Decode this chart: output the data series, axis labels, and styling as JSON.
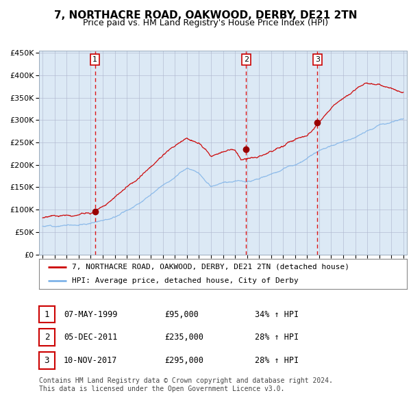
{
  "title": "7, NORTHACRE ROAD, OAKWOOD, DERBY, DE21 2TN",
  "subtitle": "Price paid vs. HM Land Registry's House Price Index (HPI)",
  "background_color": "#ffffff",
  "plot_bg_color": "#dce9f5",
  "hpi_line_color": "#7fb3e8",
  "price_line_color": "#cc0000",
  "marker_color": "#990000",
  "vline_color": "#dd0000",
  "ytick_values": [
    0,
    50000,
    100000,
    150000,
    200000,
    250000,
    300000,
    350000,
    400000,
    450000
  ],
  "ylim": [
    0,
    455000
  ],
  "xlim": [
    1994.7,
    2025.3
  ],
  "sale_dates": [
    1999.35,
    2011.92,
    2017.86
  ],
  "sale_prices": [
    95000,
    235000,
    295000
  ],
  "sale_labels": [
    "1",
    "2",
    "3"
  ],
  "sale_info": [
    {
      "num": "1",
      "date": "07-MAY-1999",
      "price": "£95,000",
      "change": "34% ↑ HPI"
    },
    {
      "num": "2",
      "date": "05-DEC-2011",
      "price": "£235,000",
      "change": "28% ↑ HPI"
    },
    {
      "num": "3",
      "date": "10-NOV-2017",
      "price": "£295,000",
      "change": "28% ↑ HPI"
    }
  ],
  "legend_property": "7, NORTHACRE ROAD, OAKWOOD, DERBY, DE21 2TN (detached house)",
  "legend_hpi": "HPI: Average price, detached house, City of Derby",
  "footnote1": "Contains HM Land Registry data © Crown copyright and database right 2024.",
  "footnote2": "This data is licensed under the Open Government Licence v3.0."
}
